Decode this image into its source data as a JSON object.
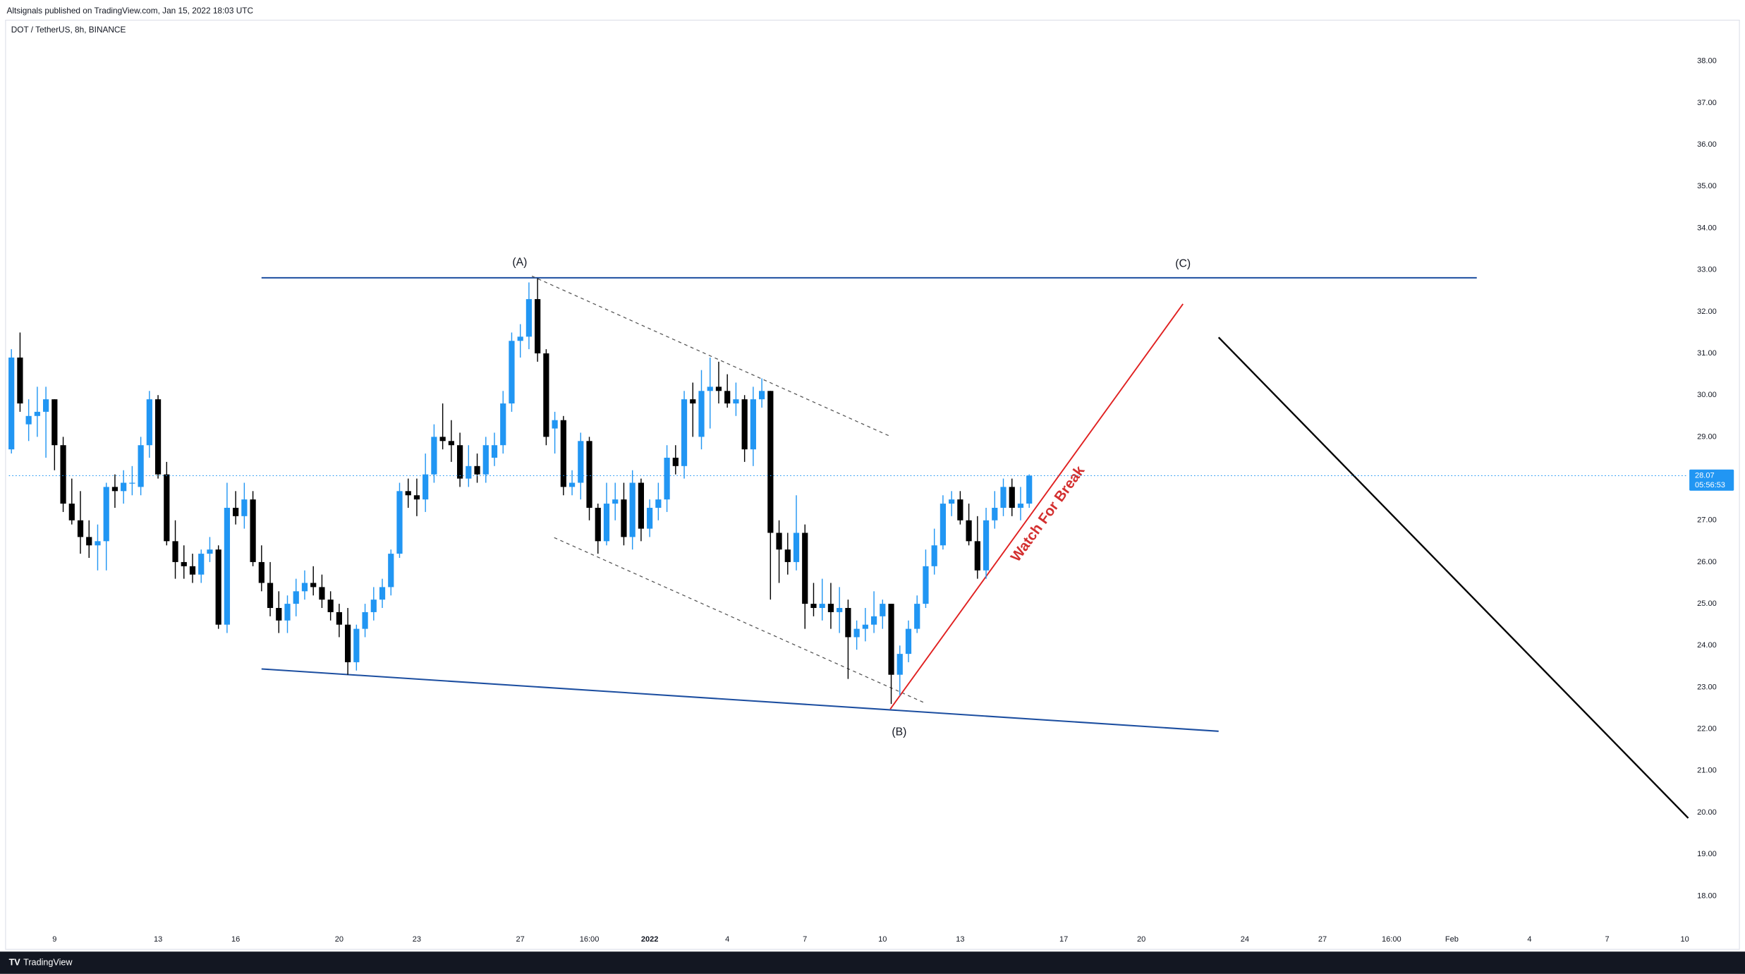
{
  "header": {
    "published": "Altsignals published on TradingView.com, Jan 15, 2022 18:03 UTC",
    "symbol": "DOT / TetherUS, 8h, BINANCE",
    "brand": "TradingView"
  },
  "chart_data": {
    "type": "candlestick",
    "x": [
      "2021-12-07T08:00",
      "2021-12-07T16:00",
      "2021-12-08T00:00",
      "2021-12-08T08:00",
      "2021-12-08T16:00",
      "2021-12-09T00:00",
      "2021-12-09T08:00",
      "2021-12-09T16:00",
      "2021-12-10T00:00",
      "2021-12-10T08:00",
      "2021-12-10T16:00",
      "2021-12-11T00:00",
      "2021-12-11T08:00",
      "2021-12-11T16:00",
      "2021-12-12T00:00",
      "2021-12-12T08:00",
      "2021-12-12T16:00",
      "2021-12-13T00:00",
      "2021-12-13T08:00",
      "2021-12-13T16:00",
      "2021-12-14T00:00",
      "2021-12-14T08:00",
      "2021-12-14T16:00",
      "2021-12-15T00:00",
      "2021-12-15T08:00",
      "2021-12-15T16:00",
      "2021-12-16T00:00",
      "2021-12-16T08:00",
      "2021-12-16T16:00",
      "2021-12-17T00:00",
      "2021-12-17T08:00",
      "2021-12-17T16:00",
      "2021-12-18T00:00",
      "2021-12-18T08:00",
      "2021-12-18T16:00",
      "2021-12-19T00:00",
      "2021-12-19T08:00",
      "2021-12-19T16:00",
      "2021-12-20T00:00",
      "2021-12-20T08:00",
      "2021-12-20T16:00",
      "2021-12-21T00:00",
      "2021-12-21T08:00",
      "2021-12-21T16:00",
      "2021-12-22T00:00",
      "2021-12-22T08:00",
      "2021-12-22T16:00",
      "2021-12-23T00:00",
      "2021-12-23T08:00",
      "2021-12-23T16:00",
      "2021-12-24T00:00",
      "2021-12-24T08:00",
      "2021-12-24T16:00",
      "2021-12-25T00:00",
      "2021-12-25T08:00",
      "2021-12-25T16:00",
      "2021-12-26T00:00",
      "2021-12-26T08:00",
      "2021-12-26T16:00",
      "2021-12-27T00:00",
      "2021-12-27T08:00",
      "2021-12-27T16:00",
      "2021-12-28T00:00",
      "2021-12-28T08:00",
      "2021-12-28T16:00",
      "2021-12-29T00:00",
      "2021-12-29T08:00",
      "2021-12-29T16:00",
      "2021-12-30T00:00",
      "2021-12-30T08:00",
      "2021-12-30T16:00",
      "2021-12-31T00:00",
      "2021-12-31T08:00",
      "2021-12-31T16:00",
      "2022-01-01T00:00",
      "2022-01-01T08:00",
      "2022-01-01T16:00",
      "2022-01-02T00:00",
      "2022-01-02T08:00",
      "2022-01-02T16:00",
      "2022-01-03T00:00",
      "2022-01-03T08:00",
      "2022-01-03T16:00",
      "2022-01-04T00:00",
      "2022-01-04T08:00",
      "2022-01-04T16:00",
      "2022-01-05T00:00",
      "2022-01-05T08:00",
      "2022-01-05T16:00",
      "2022-01-06T00:00",
      "2022-01-06T08:00",
      "2022-01-06T16:00",
      "2022-01-07T00:00",
      "2022-01-07T08:00",
      "2022-01-07T16:00",
      "2022-01-08T00:00",
      "2022-01-08T08:00",
      "2022-01-08T16:00",
      "2022-01-09T00:00",
      "2022-01-09T08:00",
      "2022-01-09T16:00",
      "2022-01-10T00:00",
      "2022-01-10T08:00",
      "2022-01-10T16:00",
      "2022-01-11T00:00",
      "2022-01-11T08:00",
      "2022-01-11T16:00",
      "2022-01-12T00:00",
      "2022-01-12T08:00",
      "2022-01-12T16:00",
      "2022-01-13T00:00",
      "2022-01-13T08:00",
      "2022-01-13T16:00",
      "2022-01-14T00:00",
      "2022-01-14T08:00",
      "2022-01-14T16:00",
      "2022-01-15T00:00",
      "2022-01-15T08:00",
      "2022-01-15T16:00"
    ],
    "open": [
      28.7,
      30.9,
      29.3,
      29.5,
      29.6,
      29.9,
      28.8,
      27.4,
      27.0,
      26.6,
      26.4,
      26.5,
      27.8,
      27.7,
      27.9,
      27.8,
      28.8,
      29.9,
      28.1,
      26.5,
      26.0,
      25.9,
      25.7,
      26.2,
      26.3,
      24.5,
      27.3,
      27.1,
      27.5,
      26.0,
      25.5,
      24.9,
      24.6,
      25.0,
      25.3,
      25.5,
      25.4,
      25.1,
      24.8,
      24.5,
      23.6,
      24.4,
      24.8,
      25.1,
      25.4,
      26.2,
      27.7,
      27.6,
      27.5,
      28.1,
      29.0,
      28.9,
      28.8,
      28.0,
      28.3,
      28.1,
      28.5,
      28.8,
      29.8,
      31.3,
      31.4,
      32.3,
      31.0,
      29.2,
      29.4,
      27.8,
      27.9,
      28.9,
      27.3,
      26.5,
      27.4,
      27.5,
      26.6,
      27.9,
      26.8,
      27.3,
      27.5,
      28.5,
      28.3,
      29.9,
      29.0,
      30.1,
      30.2,
      30.1,
      29.8,
      29.9,
      28.7,
      29.9,
      30.1,
      26.7,
      26.3,
      26.0,
      26.7,
      25.0,
      24.9,
      25.0,
      24.8,
      24.9,
      24.2,
      24.4,
      24.5,
      24.7,
      25.0,
      23.3,
      23.8,
      24.4,
      25.0,
      25.9,
      26.4,
      27.4,
      27.5,
      27.0,
      26.5,
      25.8,
      27.0,
      27.3,
      27.8,
      27.3,
      27.4
    ],
    "high": [
      31.1,
      31.5,
      29.9,
      30.2,
      30.2,
      29.9,
      29.0,
      28.0,
      27.7,
      27.0,
      26.9,
      27.9,
      28.1,
      28.2,
      28.3,
      29.0,
      30.1,
      30.0,
      28.4,
      27.0,
      26.4,
      26.2,
      26.3,
      26.6,
      26.4,
      27.9,
      27.7,
      27.9,
      27.7,
      26.4,
      26.0,
      25.3,
      25.2,
      25.6,
      25.8,
      25.9,
      25.7,
      25.3,
      25.0,
      24.9,
      24.5,
      25.0,
      25.4,
      25.6,
      26.3,
      27.9,
      28.0,
      28.0,
      28.6,
      29.3,
      29.8,
      29.4,
      29.1,
      28.8,
      28.6,
      29.0,
      29.1,
      30.1,
      31.5,
      31.7,
      32.7,
      32.8,
      31.1,
      29.6,
      29.5,
      28.2,
      29.1,
      29.0,
      27.4,
      27.9,
      27.9,
      27.9,
      28.2,
      28.0,
      27.5,
      27.9,
      28.8,
      28.8,
      30.1,
      30.3,
      30.6,
      30.9,
      30.8,
      30.5,
      30.3,
      30.0,
      30.2,
      30.4,
      30.1,
      27.0,
      26.7,
      27.6,
      26.9,
      25.5,
      25.6,
      25.5,
      25.4,
      25.1,
      24.6,
      24.9,
      25.3,
      25.1,
      25.0,
      24.0,
      24.6,
      25.2,
      26.3,
      26.8,
      27.6,
      27.7,
      27.7,
      27.4,
      27.1,
      27.3,
      27.7,
      28.0,
      28.0,
      27.8,
      28.1
    ],
    "low": [
      28.6,
      29.6,
      28.9,
      29.0,
      28.5,
      28.2,
      27.2,
      26.9,
      26.2,
      26.1,
      25.8,
      25.8,
      27.3,
      27.4,
      27.6,
      27.6,
      28.5,
      28.0,
      26.4,
      25.6,
      25.6,
      25.5,
      25.5,
      26.0,
      24.4,
      24.3,
      26.9,
      26.8,
      25.9,
      25.3,
      24.7,
      24.3,
      24.3,
      24.7,
      25.1,
      25.2,
      24.9,
      24.6,
      24.2,
      23.3,
      23.4,
      24.2,
      24.6,
      24.9,
      25.2,
      26.1,
      27.3,
      27.1,
      27.2,
      27.9,
      28.7,
      28.4,
      27.8,
      27.8,
      27.9,
      27.9,
      28.3,
      28.6,
      29.6,
      30.9,
      31.1,
      30.8,
      28.8,
      28.6,
      27.6,
      27.6,
      27.5,
      27.0,
      26.2,
      26.4,
      27.0,
      26.4,
      26.3,
      26.5,
      26.6,
      27.0,
      27.2,
      28.1,
      28.0,
      29.0,
      28.7,
      29.2,
      29.8,
      29.7,
      29.5,
      28.4,
      28.3,
      29.7,
      25.1,
      25.5,
      25.7,
      25.8,
      24.4,
      24.7,
      24.6,
      24.4,
      24.3,
      23.2,
      23.9,
      24.1,
      24.3,
      24.4,
      22.6,
      22.8,
      23.6,
      24.3,
      24.9,
      25.7,
      26.3,
      27.1,
      26.9,
      26.4,
      25.6,
      25.6,
      26.8,
      27.1,
      27.1,
      27.0,
      27.3
    ],
    "close": [
      30.9,
      29.8,
      29.5,
      29.6,
      29.9,
      28.8,
      27.4,
      27.0,
      26.6,
      26.4,
      26.5,
      27.8,
      27.7,
      27.9,
      27.9,
      28.8,
      29.9,
      28.1,
      26.5,
      26.0,
      25.9,
      25.7,
      26.2,
      26.3,
      24.5,
      27.3,
      27.1,
      27.5,
      26.0,
      25.5,
      24.9,
      24.6,
      25.0,
      25.3,
      25.5,
      25.4,
      25.1,
      24.8,
      24.5,
      23.6,
      24.4,
      24.8,
      25.1,
      25.4,
      26.2,
      27.7,
      27.6,
      27.5,
      28.1,
      29.0,
      28.9,
      28.8,
      28.0,
      28.3,
      28.1,
      28.8,
      28.8,
      29.8,
      31.3,
      31.4,
      32.3,
      31.0,
      29.0,
      29.4,
      27.8,
      27.9,
      28.9,
      27.3,
      26.5,
      27.4,
      27.5,
      26.6,
      27.9,
      26.8,
      27.3,
      27.5,
      28.5,
      28.3,
      29.9,
      29.8,
      30.1,
      30.2,
      30.1,
      29.8,
      29.9,
      28.7,
      29.9,
      30.1,
      26.7,
      26.3,
      26.0,
      26.7,
      25.0,
      24.9,
      25.0,
      24.8,
      24.9,
      24.2,
      24.4,
      24.5,
      24.7,
      25.0,
      23.3,
      23.8,
      24.4,
      25.0,
      25.9,
      26.4,
      27.4,
      27.5,
      27.0,
      26.5,
      25.8,
      27.0,
      27.3,
      27.8,
      27.3,
      27.4,
      28.07
    ],
    "up_color": "#2196f3",
    "down_color": "#000000",
    "countdown": "05:56:53",
    "xlim": [
      "2021-12-07T05:40",
      "2022-02-10T01:10"
    ],
    "xticks": [
      {
        "value": "2021-12-09T00:00",
        "label": "9"
      },
      {
        "value": "2021-12-13T00:00",
        "label": "13"
      },
      {
        "value": "2021-12-16T00:00",
        "label": "16"
      },
      {
        "value": "2021-12-20T00:00",
        "label": "20"
      },
      {
        "value": "2021-12-23T00:00",
        "label": "23"
      },
      {
        "value": "2021-12-27T00:00",
        "label": "27"
      },
      {
        "value": "2021-12-29T16:00",
        "label": "16:00"
      },
      {
        "value": "2022-01-01T00:00",
        "label": "2022"
      },
      {
        "value": "2022-01-04T00:00",
        "label": "4"
      },
      {
        "value": "2022-01-07T00:00",
        "label": "7"
      },
      {
        "value": "2022-01-10T00:00",
        "label": "10"
      },
      {
        "value": "2022-01-13T00:00",
        "label": "13"
      },
      {
        "value": "2022-01-17T00:00",
        "label": "17"
      },
      {
        "value": "2022-01-20T00:00",
        "label": "20"
      },
      {
        "value": "2022-01-24T00:00",
        "label": "24"
      },
      {
        "value": "2022-01-27T00:00",
        "label": "27"
      },
      {
        "value": "2022-01-29T16:00",
        "label": "16:00"
      },
      {
        "value": "2022-02-01T00:00",
        "label": "Feb"
      },
      {
        "value": "2022-02-04T00:00",
        "label": "4"
      },
      {
        "value": "2022-02-07T00:00",
        "label": "7"
      },
      {
        "value": "2022-02-10T00:00",
        "label": "10"
      }
    ],
    "ylim": [
      17.2,
      38.93
    ],
    "yticks": [
      {
        "value": 18,
        "label": "18.00"
      },
      {
        "value": 19,
        "label": "19.00"
      },
      {
        "value": 20,
        "label": "20.00"
      },
      {
        "value": 21,
        "label": "21.00"
      },
      {
        "value": 22,
        "label": "22.00"
      },
      {
        "value": 23,
        "label": "23.00"
      },
      {
        "value": 24,
        "label": "24.00"
      },
      {
        "value": 25,
        "label": "25.00"
      },
      {
        "value": 26,
        "label": "26.00"
      },
      {
        "value": 27,
        "label": "27.00"
      },
      {
        "value": 28,
        "label": "28.00"
      },
      {
        "value": 29,
        "label": "29.00"
      },
      {
        "value": 30,
        "label": "30.00"
      },
      {
        "value": 31,
        "label": "31.00"
      },
      {
        "value": 32,
        "label": "32.00"
      },
      {
        "value": 33,
        "label": "33.00"
      },
      {
        "value": 34,
        "label": "34.00"
      },
      {
        "value": 35,
        "label": "35.00"
      },
      {
        "value": 36,
        "label": "36.00"
      },
      {
        "value": 37,
        "label": "37.00"
      },
      {
        "value": 38,
        "label": "38.00"
      }
    ],
    "grid": false,
    "annotations": {
      "a": "(A)",
      "b": "(B)",
      "c": "(C)",
      "watch": "Watch For Break"
    }
  }
}
